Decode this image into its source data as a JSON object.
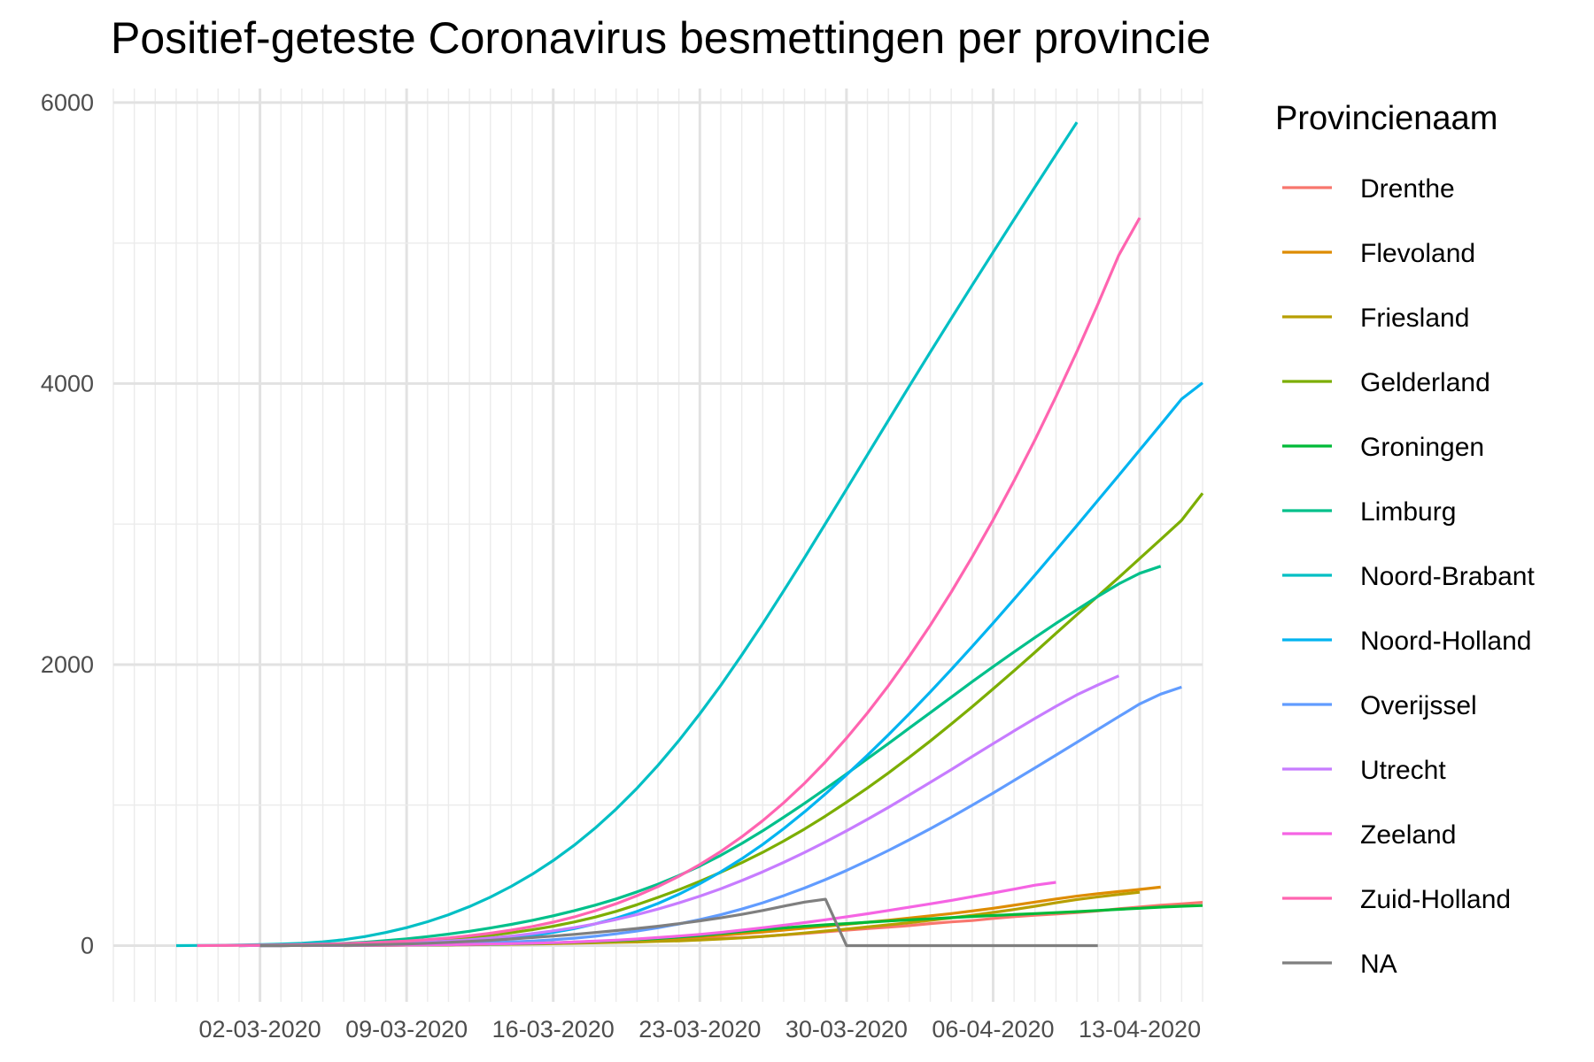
{
  "chart_data": {
    "type": "line",
    "title": "Positief-geteste Coronavirus besmettingen per provincie",
    "xlabel": "",
    "ylabel": "",
    "x_type": "date",
    "xlim": [
      "2020-02-24",
      "2020-04-16"
    ],
    "ylim": [
      -400,
      6100
    ],
    "y_ticks": [
      0,
      2000,
      4000,
      6000
    ],
    "y_tick_labels": [
      "0",
      "2000",
      "4000",
      "6000"
    ],
    "x_ticks": [
      "2020-03-02",
      "2020-03-09",
      "2020-03-16",
      "2020-03-23",
      "2020-03-30",
      "2020-04-06",
      "2020-04-13"
    ],
    "x_tick_labels": [
      "02-03-2020",
      "09-03-2020",
      "16-03-2020",
      "23-03-2020",
      "30-03-2020",
      "06-04-2020",
      "13-04-2020"
    ],
    "grid": true,
    "legend_title": "Provincienaam",
    "legend_position": "right",
    "series": [
      {
        "name": "Drenthe",
        "color": "#F8766D",
        "start": "2020-03-02",
        "values": [
          0,
          0,
          1,
          1,
          2,
          3,
          3,
          4,
          5,
          6,
          8,
          10,
          12,
          14,
          17,
          20,
          25,
          29,
          34,
          38,
          43,
          47,
          52,
          58,
          66,
          76,
          86,
          98,
          110,
          121,
          131,
          142,
          157,
          169,
          178,
          193,
          206,
          216,
          225,
          235,
          247,
          262,
          275,
          288,
          297,
          308
        ]
      },
      {
        "name": "Flevoland",
        "color": "#DE8C00",
        "start": "2020-03-04",
        "values": [
          0,
          1,
          1,
          2,
          3,
          4,
          5,
          6,
          8,
          10,
          12,
          15,
          19,
          23,
          28,
          33,
          39,
          46,
          54,
          63,
          73,
          85,
          97,
          110,
          124,
          138,
          152,
          166,
          181,
          196,
          212,
          228,
          246,
          266,
          288,
          310,
          332,
          352,
          369,
          385,
          400,
          416
        ]
      },
      {
        "name": "Friesland",
        "color": "#B79F00",
        "start": "2020-03-06",
        "values": [
          0,
          1,
          2,
          3,
          4,
          5,
          6,
          8,
          10,
          12,
          14,
          17,
          20,
          23,
          26,
          30,
          34,
          40,
          47,
          55,
          65,
          77,
          90,
          104,
          118,
          133,
          148,
          163,
          180,
          198,
          216,
          236,
          257,
          280,
          305,
          328,
          347,
          364,
          380
        ]
      },
      {
        "name": "Gelderland",
        "color": "#7CAE00",
        "start": "2020-03-01",
        "values": [
          0,
          1,
          2,
          4,
          6,
          9,
          13,
          18,
          25,
          34,
          45,
          58,
          73,
          92,
          113,
          138,
          168,
          203,
          244,
          291,
          343,
          398,
          458,
          522,
          590,
          664,
          744,
          830,
          922,
          1020,
          1122,
          1229,
          1340,
          1456,
          1577,
          1700,
          1827,
          1956,
          2088,
          2222,
          2355,
          2487,
          2620,
          2755,
          2890,
          3027,
          3220
        ]
      },
      {
        "name": "Groningen",
        "color": "#00BA38",
        "start": "2020-03-02",
        "values": [
          0,
          0,
          1,
          1,
          2,
          2,
          3,
          4,
          5,
          6,
          8,
          10,
          13,
          16,
          20,
          25,
          30,
          36,
          43,
          51,
          61,
          72,
          86,
          101,
          114,
          126,
          138,
          148,
          157,
          166,
          175,
          183,
          191,
          199,
          207,
          214,
          221,
          228,
          235,
          242,
          250,
          258,
          266,
          274,
          280,
          285
        ]
      },
      {
        "name": "Limburg",
        "color": "#00C08B",
        "start": "2020-03-01",
        "values": [
          0,
          1,
          3,
          6,
          10,
          16,
          24,
          35,
          48,
          64,
          82,
          102,
          125,
          151,
          180,
          212,
          248,
          288,
          332,
          382,
          437,
          499,
          567,
          643,
          727,
          817,
          913,
          1013,
          1116,
          1222,
          1330,
          1438,
          1548,
          1658,
          1768,
          1878,
          1985,
          2090,
          2193,
          2293,
          2390,
          2485,
          2575,
          2650,
          2700
        ]
      },
      {
        "name": "Noord-Brabant",
        "color": "#00BFC4",
        "start": "2020-02-27",
        "values": [
          0,
          1,
          2,
          4,
          7,
          11,
          17,
          27,
          42,
          64,
          93,
          128,
          170,
          220,
          278,
          345,
          422,
          508,
          605,
          714,
          836,
          971,
          1120,
          1283,
          1460,
          1650,
          1853,
          2068,
          2292,
          2524,
          2762,
          3004,
          3248,
          3493,
          3738,
          3982,
          4224,
          4463,
          4700,
          4935,
          5168,
          5400,
          5630,
          5860
        ]
      },
      {
        "name": "Noord-Holland",
        "color": "#00B4F0",
        "start": "2020-03-02",
        "values": [
          0,
          1,
          2,
          3,
          5,
          7,
          10,
          14,
          19,
          25,
          32,
          42,
          55,
          72,
          94,
          121,
          155,
          195,
          243,
          300,
          366,
          441,
          525,
          618,
          720,
          832,
          952,
          1080,
          1215,
          1355,
          1500,
          1650,
          1805,
          1965,
          2128,
          2295,
          2465,
          2638,
          2813,
          2990,
          3168,
          3347,
          3527,
          3708,
          3890,
          4005
        ]
      },
      {
        "name": "Overijssel",
        "color": "#619CFF",
        "start": "2020-03-02",
        "values": [
          0,
          0,
          1,
          1,
          2,
          3,
          4,
          6,
          8,
          11,
          15,
          20,
          26,
          33,
          42,
          53,
          67,
          84,
          104,
          127,
          154,
          185,
          220,
          260,
          305,
          355,
          410,
          470,
          535,
          604,
          677,
          753,
          832,
          914,
          999,
          1086,
          1175,
          1265,
          1356,
          1447,
          1538,
          1630,
          1720,
          1790,
          1840
        ]
      },
      {
        "name": "Utrecht",
        "color": "#C77CFF",
        "start": "2020-03-01",
        "values": [
          0,
          1,
          2,
          3,
          5,
          7,
          10,
          14,
          19,
          25,
          33,
          42,
          54,
          68,
          85,
          105,
          128,
          155,
          186,
          221,
          260,
          304,
          352,
          405,
          463,
          525,
          592,
          663,
          738,
          817,
          899,
          984,
          1072,
          1162,
          1253,
          1345,
          1437,
          1528,
          1617,
          1703,
          1785,
          1855,
          1920
        ]
      },
      {
        "name": "Zeeland",
        "color": "#F564E3",
        "start": "2020-03-02",
        "values": [
          0,
          0,
          1,
          1,
          2,
          2,
          3,
          4,
          5,
          7,
          9,
          11,
          14,
          17,
          21,
          26,
          32,
          39,
          47,
          57,
          68,
          80,
          94,
          110,
          127,
          145,
          164,
          184,
          205,
          227,
          250,
          273,
          297,
          322,
          348,
          375,
          402,
          430,
          450
        ]
      },
      {
        "name": "Zuid-Holland",
        "color": "#FF64B0",
        "start": "2020-02-28",
        "values": [
          0,
          1,
          2,
          3,
          5,
          7,
          10,
          14,
          19,
          25,
          33,
          43,
          55,
          70,
          88,
          110,
          136,
          167,
          204,
          248,
          298,
          355,
          420,
          494,
          577,
          670,
          774,
          889,
          1016,
          1156,
          1309,
          1476,
          1656,
          1850,
          2058,
          2280,
          2516,
          2766,
          3030,
          3308,
          3600,
          3907,
          4228,
          4564,
          4914,
          5180
        ]
      },
      {
        "name": "NA",
        "color": "#7F7F7F",
        "start": "2020-03-02",
        "values": [
          0,
          0,
          1,
          2,
          3,
          5,
          8,
          12,
          17,
          23,
          30,
          38,
          47,
          57,
          68,
          80,
          93,
          107,
          122,
          138,
          156,
          176,
          198,
          222,
          250,
          281,
          310,
          330,
          0,
          0,
          0,
          0,
          0,
          0,
          0,
          0,
          0,
          0,
          0,
          0,
          0
        ]
      }
    ]
  }
}
